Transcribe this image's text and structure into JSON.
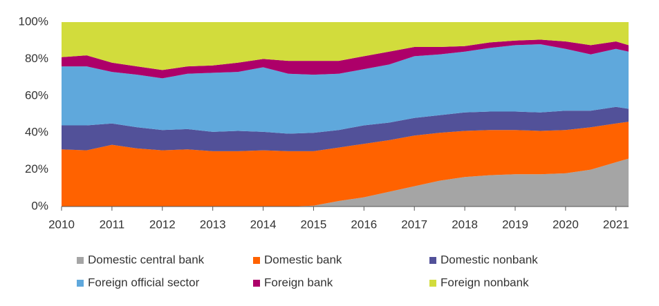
{
  "chart_data": {
    "type": "stacked_area",
    "x": [
      2010,
      2010.5,
      2011,
      2011.5,
      2012,
      2012.5,
      2013,
      2013.5,
      2014,
      2014.5,
      2015,
      2015.5,
      2016,
      2016.5,
      2017,
      2017.5,
      2018,
      2018.5,
      2019,
      2019.5,
      2020,
      2020.5,
      2021,
      2021.25
    ],
    "series": [
      {
        "name": "Domestic central bank",
        "color": "#a5a5a5",
        "values": [
          0,
          0,
          0,
          0,
          0,
          0,
          0,
          0,
          0,
          0,
          0.5,
          3,
          5,
          8,
          11,
          14,
          16,
          17,
          17.5,
          17.5,
          18,
          20,
          24,
          26
        ]
      },
      {
        "name": "Domestic bank",
        "color": "#ff6200",
        "values": [
          31,
          30.5,
          33.5,
          31.5,
          30.5,
          31,
          30,
          30,
          30.5,
          30,
          29.5,
          29,
          29,
          28,
          27.5,
          26,
          25,
          24.5,
          24,
          23.5,
          23.5,
          23,
          21,
          20
        ]
      },
      {
        "name": "Domestic nonbank",
        "color": "#525199",
        "values": [
          13,
          13.5,
          11.5,
          11.5,
          11,
          11,
          10.5,
          11,
          10,
          9.5,
          10,
          9.5,
          10,
          9.5,
          9.5,
          9.5,
          10,
          10,
          10,
          10,
          10.5,
          9,
          9,
          7
        ]
      },
      {
        "name": "Foreign official sector",
        "color": "#5fa8dc",
        "values": [
          32,
          32,
          28,
          28.5,
          28,
          30,
          32,
          32,
          35,
          32.5,
          31.5,
          30.5,
          30.5,
          31.5,
          33.5,
          33,
          33,
          34.5,
          36,
          37,
          33.5,
          30.5,
          31.5,
          31
        ]
      },
      {
        "name": "Foreign bank",
        "color": "#ad0069",
        "values": [
          5,
          6,
          5,
          4.5,
          4.5,
          4,
          4,
          5,
          4.5,
          7,
          7.5,
          7,
          7,
          7,
          5,
          4,
          3,
          3,
          2.5,
          2.5,
          4,
          5,
          4,
          3.5
        ]
      },
      {
        "name": "Foreign nonbank",
        "color": "#d2dc3c",
        "values": [
          19,
          18,
          22,
          24,
          26,
          24,
          23.5,
          22,
          20,
          21,
          21,
          21,
          18.5,
          16,
          13.5,
          13.5,
          13,
          11,
          10,
          9.5,
          10.5,
          12.5,
          10.5,
          12.5
        ]
      }
    ],
    "xlim": [
      2010,
      2021.25
    ],
    "xticks": [
      2010,
      2011,
      2012,
      2013,
      2014,
      2015,
      2016,
      2017,
      2018,
      2019,
      2020,
      2021
    ],
    "ylim": [
      0,
      100
    ],
    "yticks": [
      {
        "value": 0,
        "label": "0%"
      },
      {
        "value": 20,
        "label": "20%"
      },
      {
        "value": 40,
        "label": "40%"
      },
      {
        "value": 60,
        "label": "60%"
      },
      {
        "value": 80,
        "label": "80%"
      },
      {
        "value": 100,
        "label": "100%"
      }
    ]
  }
}
